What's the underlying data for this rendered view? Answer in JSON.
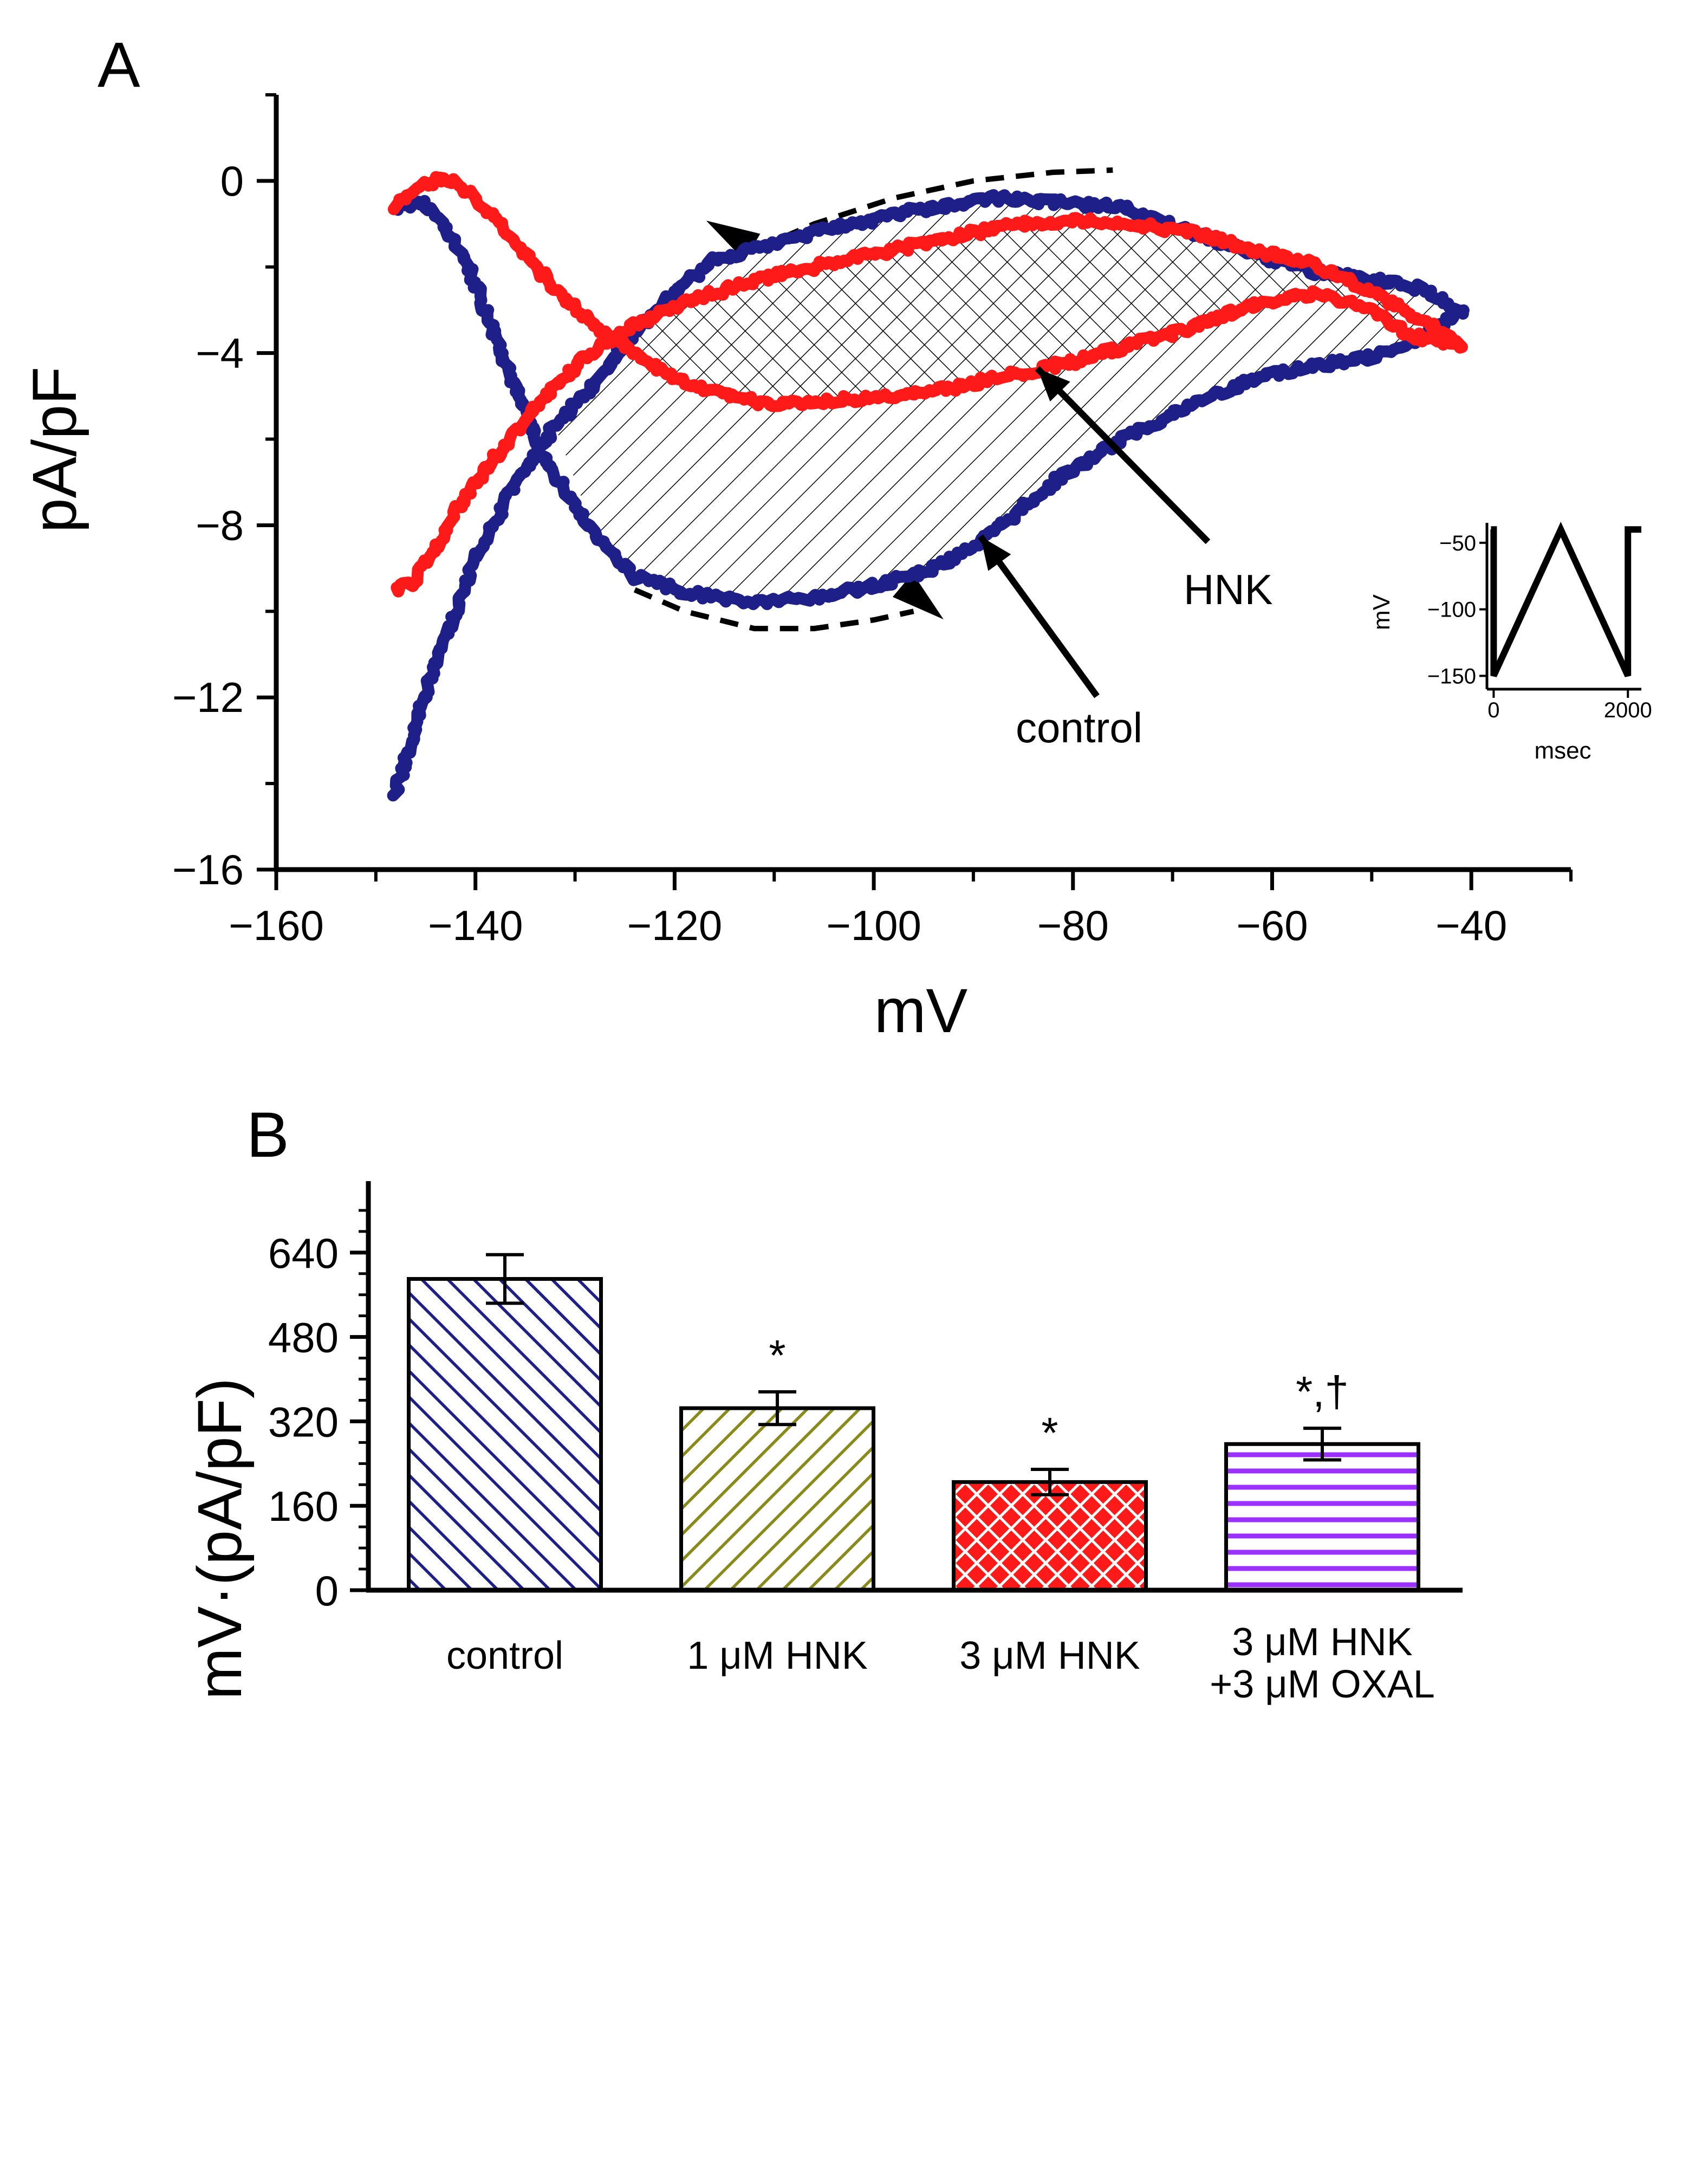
{
  "chart_data": [
    {
      "panel": "A",
      "type": "line",
      "xlabel": "mV",
      "ylabel": "pA/pF",
      "xlim": [
        -160,
        -30
      ],
      "ylim": [
        -16,
        2
      ],
      "xticks": [
        -160,
        -140,
        -120,
        -100,
        -80,
        -60,
        -40
      ],
      "xtick_labels": [
        "−160",
        "−140",
        "−120",
        "−100",
        "−80",
        "−60",
        "−40"
      ],
      "yticks": [
        -16,
        -12,
        -8,
        -4,
        0
      ],
      "ytick_labels": [
        "−16",
        "−12",
        "−8",
        "−4",
        "0"
      ],
      "series": [
        {
          "name": "control",
          "color": "#1f1f8a",
          "descending": [
            [
              -148,
              -0.6
            ],
            [
              -145,
              -0.5
            ],
            [
              -141,
              -1.8
            ],
            [
              -137,
              -4.2
            ],
            [
              -133,
              -6.5
            ],
            [
              -128,
              -8.2
            ],
            [
              -124,
              -9.2
            ],
            [
              -118,
              -9.6
            ],
            [
              -112,
              -9.8
            ],
            [
              -106,
              -9.7
            ],
            [
              -100,
              -9.4
            ],
            [
              -94,
              -9.0
            ],
            [
              -88,
              -8.2
            ],
            [
              -82,
              -7.0
            ],
            [
              -75,
              -6.0
            ],
            [
              -68,
              -5.2
            ],
            [
              -62,
              -4.6
            ],
            [
              -56,
              -4.3
            ],
            [
              -50,
              -4.1
            ],
            [
              -45,
              -3.6
            ],
            [
              -41,
              -3.0
            ]
          ],
          "ascending": [
            [
              -41,
              -3.0
            ],
            [
              -45,
              -2.5
            ],
            [
              -50,
              -2.3
            ],
            [
              -56,
              -2.1
            ],
            [
              -62,
              -1.7
            ],
            [
              -68,
              -1.2
            ],
            [
              -75,
              -0.6
            ],
            [
              -82,
              -0.5
            ],
            [
              -88,
              -0.4
            ],
            [
              -94,
              -0.6
            ],
            [
              -100,
              -0.9
            ],
            [
              -106,
              -1.2
            ],
            [
              -112,
              -1.6
            ],
            [
              -116,
              -1.8
            ],
            [
              -120,
              -2.6
            ],
            [
              -124,
              -3.5
            ],
            [
              -128,
              -4.7
            ],
            [
              -132,
              -5.7
            ],
            [
              -136,
              -7.0
            ],
            [
              -140,
              -8.8
            ],
            [
              -144,
              -11.2
            ],
            [
              -148,
              -14.2
            ]
          ]
        },
        {
          "name": "HNK",
          "color": "#ff1a1a",
          "descending": [
            [
              -148,
              -0.6
            ],
            [
              -146,
              -0.2
            ],
            [
              -143,
              0.1
            ],
            [
              -140,
              -0.4
            ],
            [
              -136,
              -1.4
            ],
            [
              -132,
              -2.5
            ],
            [
              -128,
              -3.4
            ],
            [
              -124,
              -4.0
            ],
            [
              -120,
              -4.6
            ],
            [
              -115,
              -5.0
            ],
            [
              -110,
              -5.2
            ],
            [
              -104,
              -5.1
            ],
            [
              -98,
              -5.0
            ],
            [
              -92,
              -4.8
            ],
            [
              -86,
              -4.5
            ],
            [
              -80,
              -4.2
            ],
            [
              -74,
              -3.8
            ],
            [
              -68,
              -3.4
            ],
            [
              -62,
              -2.9
            ],
            [
              -56,
              -2.6
            ],
            [
              -51,
              -2.9
            ],
            [
              -46,
              -3.6
            ],
            [
              -41,
              -3.8
            ]
          ],
          "ascending": [
            [
              -41,
              -3.8
            ],
            [
              -45,
              -3.2
            ],
            [
              -50,
              -2.6
            ],
            [
              -56,
              -1.9
            ],
            [
              -62,
              -1.6
            ],
            [
              -68,
              -1.2
            ],
            [
              -74,
              -1.0
            ],
            [
              -80,
              -0.9
            ],
            [
              -86,
              -1.0
            ],
            [
              -92,
              -1.3
            ],
            [
              -98,
              -1.6
            ],
            [
              -104,
              -1.9
            ],
            [
              -110,
              -2.2
            ],
            [
              -116,
              -2.6
            ],
            [
              -121,
              -3.0
            ],
            [
              -126,
              -3.6
            ],
            [
              -130,
              -4.3
            ],
            [
              -134,
              -5.3
            ],
            [
              -138,
              -6.4
            ],
            [
              -142,
              -7.7
            ],
            [
              -146,
              -9.3
            ],
            [
              -148,
              -9.5
            ]
          ]
        }
      ],
      "annotations": [
        "HNK",
        "control"
      ],
      "inset": {
        "xlabel": "msec",
        "ylabel": "mV",
        "xticks": [
          0,
          2000
        ],
        "xtick_labels": [
          "0",
          "2000"
        ],
        "yticks": [
          -150,
          -100,
          -50
        ],
        "ytick_labels": [
          "−150",
          "−100",
          "−50"
        ],
        "waveform": [
          [
            -40,
            -40
          ],
          [
            0,
            -40
          ],
          [
            0,
            -150
          ],
          [
            1000,
            -40
          ],
          [
            2000,
            -150
          ],
          [
            2000,
            -40
          ],
          [
            2200,
            -40
          ]
        ]
      }
    },
    {
      "panel": "B",
      "type": "bar",
      "ylabel": "mV·(pA/pF)",
      "ylim": [
        0,
        760
      ],
      "yticks": [
        0,
        160,
        320,
        480,
        640
      ],
      "ytick_labels": [
        "0",
        "160",
        "320",
        "480",
        "640"
      ],
      "categories": [
        "control",
        "1 μM HNK",
        "3 μM HNK",
        "3 μM HNK\n+3 μM OXAL"
      ],
      "category_lines": [
        [
          "control"
        ],
        [
          "1 μM HNK"
        ],
        [
          "3 μM HNK"
        ],
        [
          "3 μM HNK",
          "+3 μM OXAL"
        ]
      ],
      "values": [
        590,
        345,
        205,
        277
      ],
      "errors": [
        46,
        31,
        24,
        30
      ],
      "significance": [
        "",
        "*",
        "*",
        "*,†"
      ],
      "colors": [
        "#1f1f8a",
        "#8a8a1a",
        "#ff1a1a",
        "#9b30ff"
      ],
      "patterns": [
        "diagonal",
        "diagonal",
        "crosshatch",
        "horizontal"
      ]
    }
  ],
  "panels": {
    "a": "A",
    "b": "B"
  }
}
